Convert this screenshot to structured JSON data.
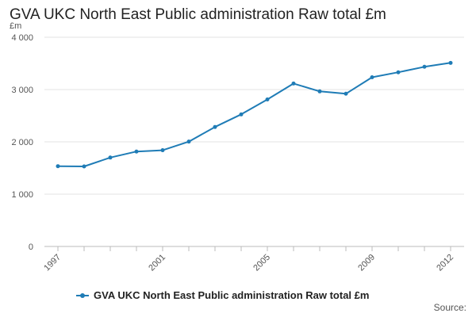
{
  "chart_data": {
    "type": "line",
    "title": "GVA UKC North East Public administration Raw total £m",
    "ylabel": "£m",
    "xlabel": "",
    "x": [
      1997,
      1998,
      1999,
      2000,
      2001,
      2002,
      2003,
      2004,
      2005,
      2006,
      2007,
      2008,
      2009,
      2010,
      2011,
      2012
    ],
    "xtick_labels": [
      "1997",
      "2001",
      "2005",
      "2009",
      "2012"
    ],
    "xtick_values": [
      1997,
      2001,
      2005,
      2009,
      2012
    ],
    "ylim": [
      0,
      4000
    ],
    "yticks": [
      0,
      1000,
      2000,
      3000,
      4000
    ],
    "ytick_labels": [
      "0",
      "1 000",
      "2 000",
      "3 000",
      "4 000"
    ],
    "series": [
      {
        "name": "GVA UKC North East Public administration Raw total £m",
        "values": [
          1535,
          1530,
          1700,
          1815,
          1840,
          2005,
          2285,
          2525,
          2810,
          3115,
          2965,
          2920,
          3235,
          3330,
          3435,
          3510
        ],
        "color": "#1f7cb6"
      }
    ],
    "legend": "bottom",
    "grid": true,
    "source_label": "Source:"
  }
}
